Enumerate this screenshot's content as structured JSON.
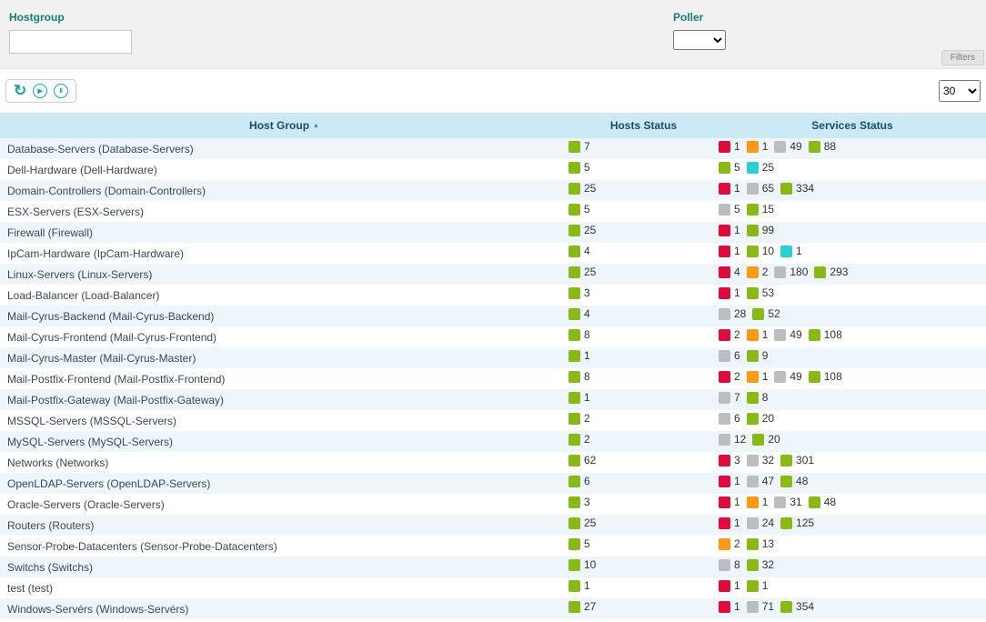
{
  "filters": {
    "hostgroup_label": "Hostgroup",
    "hostgroup_value": "",
    "poller_label": "Poller",
    "poller_value": "",
    "filters_button": "Filters"
  },
  "icons": {
    "refresh": "↻",
    "play": "▶",
    "pause": "Ⅱ",
    "sort_asc": "▲"
  },
  "toolbar": {
    "page_size": "30"
  },
  "status_colors": {
    "ok": "#88b917",
    "critical": "#e00b3d",
    "warning": "#ff9913",
    "unknown": "#bcbdc0",
    "pending": "#2ad1d4"
  },
  "table": {
    "columns": [
      "Host Group",
      "Hosts Status",
      "Services Status"
    ],
    "rows": [
      {
        "name": "Database-Servers (Database-Servers)",
        "hosts": [
          {
            "status": "ok",
            "count": "7"
          }
        ],
        "services": [
          {
            "status": "critical",
            "count": "1"
          },
          {
            "status": "warning",
            "count": "1"
          },
          {
            "status": "unknown",
            "count": "49"
          },
          {
            "status": "ok",
            "count": "88"
          }
        ]
      },
      {
        "name": "Dell-Hardware (Dell-Hardware)",
        "hosts": [
          {
            "status": "ok",
            "count": "5"
          }
        ],
        "services": [
          {
            "status": "ok",
            "count": "5"
          },
          {
            "status": "pending",
            "count": "25"
          }
        ]
      },
      {
        "name": "Domain-Controllers (Domain-Controllers)",
        "hosts": [
          {
            "status": "ok",
            "count": "25"
          }
        ],
        "services": [
          {
            "status": "critical",
            "count": "1"
          },
          {
            "status": "unknown",
            "count": "65"
          },
          {
            "status": "ok",
            "count": "334"
          }
        ]
      },
      {
        "name": "ESX-Servers (ESX-Servers)",
        "hosts": [
          {
            "status": "ok",
            "count": "5"
          }
        ],
        "services": [
          {
            "status": "unknown",
            "count": "5"
          },
          {
            "status": "ok",
            "count": "15"
          }
        ]
      },
      {
        "name": "Firewall (Firewall)",
        "hosts": [
          {
            "status": "ok",
            "count": "25"
          }
        ],
        "services": [
          {
            "status": "critical",
            "count": "1"
          },
          {
            "status": "ok",
            "count": "99"
          }
        ]
      },
      {
        "name": "IpCam-Hardware (IpCam-Hardware)",
        "hosts": [
          {
            "status": "ok",
            "count": "4"
          }
        ],
        "services": [
          {
            "status": "critical",
            "count": "1"
          },
          {
            "status": "ok",
            "count": "10"
          },
          {
            "status": "pending",
            "count": "1"
          }
        ]
      },
      {
        "name": "Linux-Servers (Linux-Servers)",
        "hosts": [
          {
            "status": "ok",
            "count": "25"
          }
        ],
        "services": [
          {
            "status": "critical",
            "count": "4"
          },
          {
            "status": "warning",
            "count": "2"
          },
          {
            "status": "unknown",
            "count": "180"
          },
          {
            "status": "ok",
            "count": "293"
          }
        ]
      },
      {
        "name": "Load-Balancer (Load-Balancer)",
        "hosts": [
          {
            "status": "ok",
            "count": "3"
          }
        ],
        "services": [
          {
            "status": "critical",
            "count": "1"
          },
          {
            "status": "ok",
            "count": "53"
          }
        ]
      },
      {
        "name": "Mail-Cyrus-Backend (Mail-Cyrus-Backend)",
        "hosts": [
          {
            "status": "ok",
            "count": "4"
          }
        ],
        "services": [
          {
            "status": "unknown",
            "count": "28"
          },
          {
            "status": "ok",
            "count": "52"
          }
        ]
      },
      {
        "name": "Mail-Cyrus-Frontend (Mail-Cyrus-Frontend)",
        "hosts": [
          {
            "status": "ok",
            "count": "8"
          }
        ],
        "services": [
          {
            "status": "critical",
            "count": "2"
          },
          {
            "status": "warning",
            "count": "1"
          },
          {
            "status": "unknown",
            "count": "49"
          },
          {
            "status": "ok",
            "count": "108"
          }
        ]
      },
      {
        "name": "Mail-Cyrus-Master (Mail-Cyrus-Master)",
        "hosts": [
          {
            "status": "ok",
            "count": "1"
          }
        ],
        "services": [
          {
            "status": "unknown",
            "count": "6"
          },
          {
            "status": "ok",
            "count": "9"
          }
        ]
      },
      {
        "name": "Mail-Postfix-Frontend (Mail-Postfix-Frontend)",
        "hosts": [
          {
            "status": "ok",
            "count": "8"
          }
        ],
        "services": [
          {
            "status": "critical",
            "count": "2"
          },
          {
            "status": "warning",
            "count": "1"
          },
          {
            "status": "unknown",
            "count": "49"
          },
          {
            "status": "ok",
            "count": "108"
          }
        ]
      },
      {
        "name": "Mail-Postfix-Gateway (Mail-Postfix-Gateway)",
        "hosts": [
          {
            "status": "ok",
            "count": "1"
          }
        ],
        "services": [
          {
            "status": "unknown",
            "count": "7"
          },
          {
            "status": "ok",
            "count": "8"
          }
        ]
      },
      {
        "name": "MSSQL-Servers (MSSQL-Servers)",
        "hosts": [
          {
            "status": "ok",
            "count": "2"
          }
        ],
        "services": [
          {
            "status": "unknown",
            "count": "6"
          },
          {
            "status": "ok",
            "count": "20"
          }
        ]
      },
      {
        "name": "MySQL-Servers (MySQL-Servers)",
        "hosts": [
          {
            "status": "ok",
            "count": "2"
          }
        ],
        "services": [
          {
            "status": "unknown",
            "count": "12"
          },
          {
            "status": "ok",
            "count": "20"
          }
        ]
      },
      {
        "name": "Networks (Networks)",
        "hosts": [
          {
            "status": "ok",
            "count": "62"
          }
        ],
        "services": [
          {
            "status": "critical",
            "count": "3"
          },
          {
            "status": "unknown",
            "count": "32"
          },
          {
            "status": "ok",
            "count": "301"
          }
        ]
      },
      {
        "name": "OpenLDAP-Servers (OpenLDAP-Servers)",
        "hosts": [
          {
            "status": "ok",
            "count": "6"
          }
        ],
        "services": [
          {
            "status": "critical",
            "count": "1"
          },
          {
            "status": "unknown",
            "count": "47"
          },
          {
            "status": "ok",
            "count": "48"
          }
        ]
      },
      {
        "name": "Oracle-Servers (Oracle-Servers)",
        "hosts": [
          {
            "status": "ok",
            "count": "3"
          }
        ],
        "services": [
          {
            "status": "critical",
            "count": "1"
          },
          {
            "status": "warning",
            "count": "1"
          },
          {
            "status": "unknown",
            "count": "31"
          },
          {
            "status": "ok",
            "count": "48"
          }
        ]
      },
      {
        "name": "Routers (Routers)",
        "hosts": [
          {
            "status": "ok",
            "count": "25"
          }
        ],
        "services": [
          {
            "status": "critical",
            "count": "1"
          },
          {
            "status": "unknown",
            "count": "24"
          },
          {
            "status": "ok",
            "count": "125"
          }
        ]
      },
      {
        "name": "Sensor-Probe-Datacenters (Sensor-Probe-Datacenters)",
        "hosts": [
          {
            "status": "ok",
            "count": "5"
          }
        ],
        "services": [
          {
            "status": "warning",
            "count": "2"
          },
          {
            "status": "ok",
            "count": "13"
          }
        ]
      },
      {
        "name": "Switchs (Switchs)",
        "hosts": [
          {
            "status": "ok",
            "count": "10"
          }
        ],
        "services": [
          {
            "status": "unknown",
            "count": "8"
          },
          {
            "status": "ok",
            "count": "32"
          }
        ]
      },
      {
        "name": "test (test)",
        "hosts": [
          {
            "status": "ok",
            "count": "1"
          }
        ],
        "services": [
          {
            "status": "critical",
            "count": "1"
          },
          {
            "status": "ok",
            "count": "1"
          }
        ]
      },
      {
        "name": "Windows-Servérs (Windows-Servérs)",
        "hosts": [
          {
            "status": "ok",
            "count": "27"
          }
        ],
        "services": [
          {
            "status": "critical",
            "count": "1"
          },
          {
            "status": "unknown",
            "count": "71"
          },
          {
            "status": "ok",
            "count": "354"
          }
        ]
      }
    ]
  }
}
